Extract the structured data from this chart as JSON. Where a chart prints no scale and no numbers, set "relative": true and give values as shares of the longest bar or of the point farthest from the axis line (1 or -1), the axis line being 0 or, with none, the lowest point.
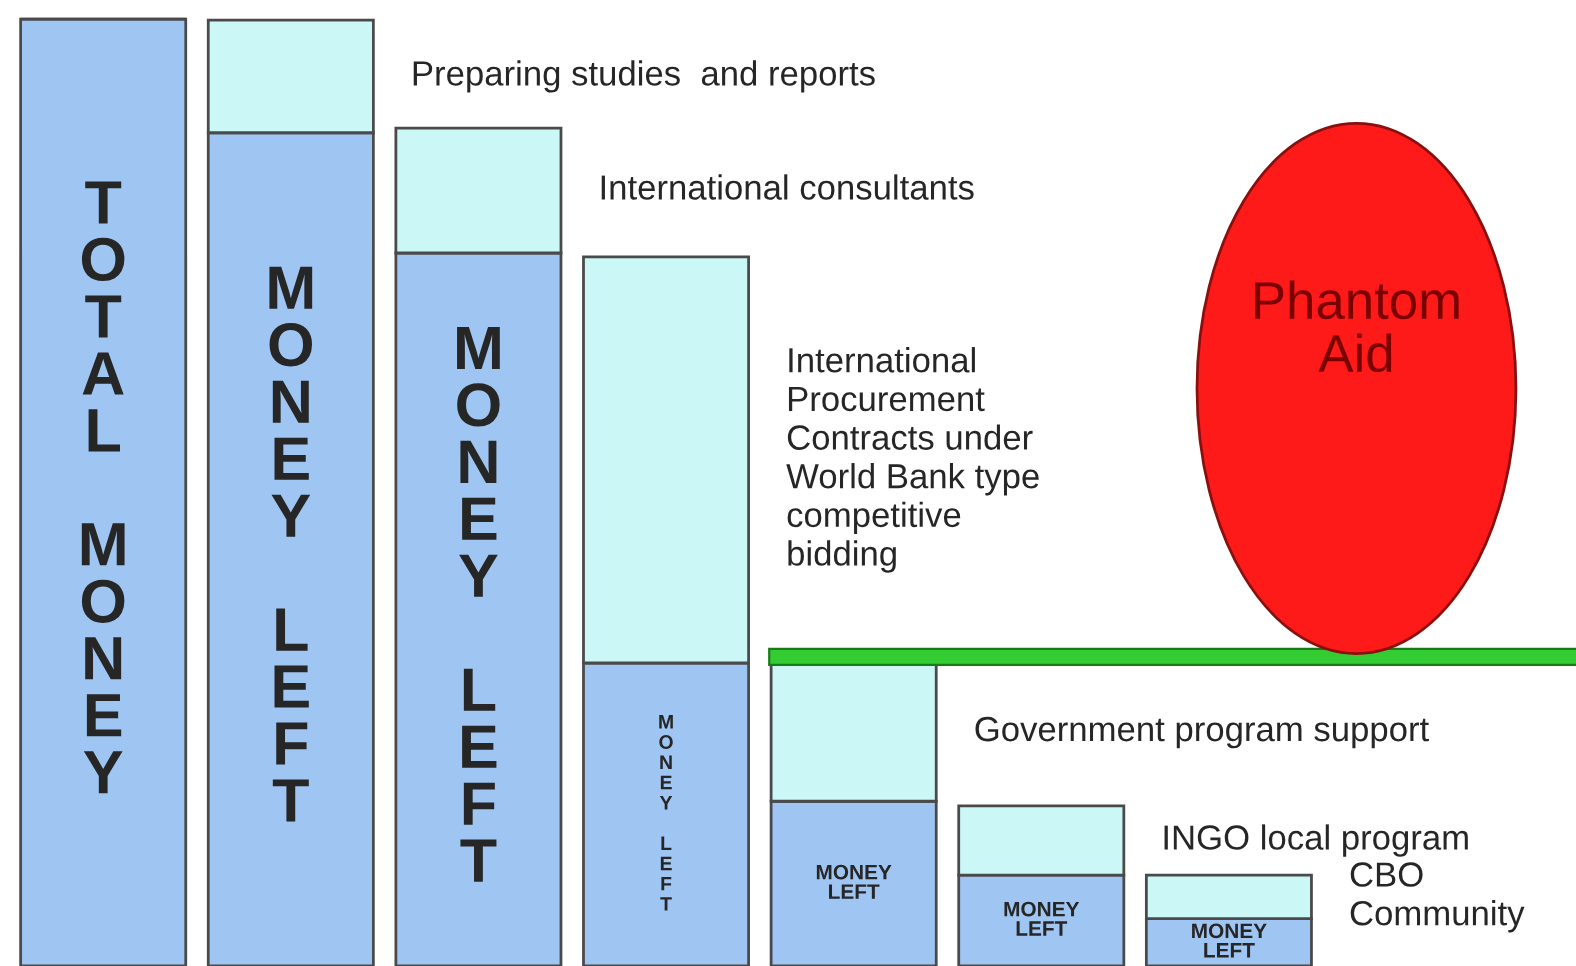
{
  "chart_data": {
    "type": "bar",
    "relative": true,
    "stacked": true,
    "legend": false,
    "categories": [
      null,
      null,
      null,
      null,
      null,
      null,
      null
    ],
    "series": [
      {
        "color": "#9fc5f2",
        "values": [
          1.0,
          0.88,
          0.753,
          0.32,
          0.174,
          0.096,
          0.05
        ]
      },
      {
        "color": "#ccf7f7",
        "values": [
          null,
          0.119,
          0.132,
          0.429,
          0.146,
          0.073,
          0.046
        ]
      }
    ],
    "annotations": [
      "TOTAL MONEY",
      "MONEY LEFT",
      "MONEY LEFT",
      "MONEY LEFT",
      "MONEY LEFT",
      "MONEY LEFT",
      "MONEY LEFT",
      "Preparing studies  and reports",
      "International consultants",
      "International\nProcurement\nContracts under\nWorld Bank type\ncompetitive\nbidding",
      "Government program support",
      "INGO local program",
      "CBO\nCommunity",
      "Phantom Aid"
    ]
  }
}
